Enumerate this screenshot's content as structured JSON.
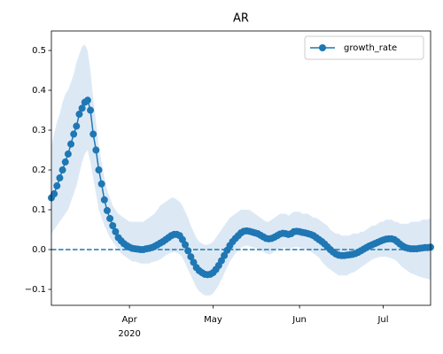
{
  "chart_data": {
    "type": "line",
    "title": "AR",
    "legend": "upper right",
    "grid": false,
    "hline": 0,
    "xlim": [
      0,
      136
    ],
    "xticks": [
      {
        "value": 28,
        "label": "Apr\n2020"
      },
      {
        "value": 58,
        "label": "May"
      },
      {
        "value": 89,
        "label": "Jun"
      },
      {
        "value": 119,
        "label": "Jul"
      }
    ],
    "ylim": [
      -0.14,
      0.549
    ],
    "yticks": [
      {
        "value": -0.1,
        "label": "−0.1"
      },
      {
        "value": 0,
        "label": "0.0"
      },
      0.1,
      0.2,
      0.3,
      0.4,
      0.5
    ],
    "series": [
      {
        "name": "growth_rate",
        "color": "#1f77b4",
        "band_color": "#dce9f5",
        "values": [
          0.13,
          0.14,
          0.16,
          0.18,
          0.2,
          0.22,
          0.24,
          0.265,
          0.29,
          0.31,
          0.34,
          0.355,
          0.37,
          0.375,
          0.35,
          0.29,
          0.25,
          0.2,
          0.165,
          0.125,
          0.098,
          0.078,
          0.06,
          0.045,
          0.03,
          0.022,
          0.015,
          0.01,
          0.006,
          0.003,
          0.002,
          0.001,
          0,
          0,
          0.002,
          0.003,
          0.005,
          0.008,
          0.012,
          0.016,
          0.02,
          0.025,
          0.03,
          0.035,
          0.038,
          0.038,
          0.035,
          0.025,
          0.012,
          -0.003,
          -0.018,
          -0.032,
          -0.045,
          -0.053,
          -0.058,
          -0.062,
          -0.063,
          -0.062,
          -0.058,
          -0.05,
          -0.04,
          -0.028,
          -0.015,
          -0.002,
          0.01,
          0.02,
          0.028,
          0.035,
          0.042,
          0.046,
          0.047,
          0.046,
          0.044,
          0.042,
          0.04,
          0.036,
          0.032,
          0.028,
          0.027,
          0.028,
          0.031,
          0.035,
          0.039,
          0.041,
          0.04,
          0.038,
          0.04,
          0.045,
          0.046,
          0.045,
          0.043,
          0.042,
          0.04,
          0.038,
          0.035,
          0.03,
          0.025,
          0.02,
          0.014,
          0.007,
          0,
          -0.006,
          -0.011,
          -0.014,
          -0.015,
          -0.015,
          -0.014,
          -0.013,
          -0.012,
          -0.01,
          -0.007,
          -0.003,
          0.001,
          0.005,
          0.009,
          0.012,
          0.015,
          0.018,
          0.021,
          0.024,
          0.026,
          0.027,
          0.027,
          0.025,
          0.02,
          0.014,
          0.009,
          0.005,
          0.003,
          0.002,
          0.002,
          0.002,
          0.003,
          0.004,
          0.005,
          0.005,
          0.006
        ],
        "upper": [
          0.26,
          0.29,
          0.32,
          0.34,
          0.37,
          0.39,
          0.4,
          0.42,
          0.44,
          0.47,
          0.49,
          0.51,
          0.515,
          0.5,
          0.45,
          0.38,
          0.32,
          0.26,
          0.22,
          0.18,
          0.15,
          0.13,
          0.11,
          0.1,
          0.09,
          0.085,
          0.08,
          0.075,
          0.07,
          0.07,
          0.07,
          0.07,
          0.07,
          0.07,
          0.075,
          0.08,
          0.085,
          0.09,
          0.1,
          0.11,
          0.115,
          0.12,
          0.125,
          0.13,
          0.13,
          0.125,
          0.12,
          0.11,
          0.095,
          0.08,
          0.06,
          0.045,
          0.03,
          0.02,
          0.015,
          0.012,
          0.012,
          0.015,
          0.02,
          0.03,
          0.04,
          0.05,
          0.06,
          0.07,
          0.08,
          0.085,
          0.09,
          0.095,
          0.1,
          0.1,
          0.1,
          0.1,
          0.095,
          0.09,
          0.085,
          0.08,
          0.075,
          0.07,
          0.07,
          0.075,
          0.08,
          0.085,
          0.09,
          0.09,
          0.09,
          0.085,
          0.09,
          0.095,
          0.095,
          0.095,
          0.09,
          0.09,
          0.09,
          0.085,
          0.08,
          0.08,
          0.075,
          0.07,
          0.065,
          0.06,
          0.05,
          0.045,
          0.04,
          0.04,
          0.035,
          0.035,
          0.035,
          0.035,
          0.04,
          0.04,
          0.04,
          0.045,
          0.045,
          0.05,
          0.055,
          0.06,
          0.06,
          0.065,
          0.07,
          0.07,
          0.075,
          0.075,
          0.075,
          0.07,
          0.07,
          0.065,
          0.065,
          0.065,
          0.065,
          0.07,
          0.07,
          0.07,
          0.07,
          0.075,
          0.075,
          0.075,
          0.08
        ],
        "lower": [
          0.04,
          0.05,
          0.06,
          0.07,
          0.08,
          0.09,
          0.1,
          0.12,
          0.14,
          0.16,
          0.19,
          0.22,
          0.24,
          0.25,
          0.22,
          0.18,
          0.14,
          0.1,
          0.08,
          0.06,
          0.045,
          0.03,
          0.02,
          0.01,
          0,
          -0.01,
          -0.015,
          -0.02,
          -0.025,
          -0.03,
          -0.03,
          -0.032,
          -0.035,
          -0.035,
          -0.035,
          -0.035,
          -0.032,
          -0.03,
          -0.028,
          -0.025,
          -0.02,
          -0.015,
          -0.01,
          -0.008,
          -0.006,
          -0.008,
          -0.012,
          -0.02,
          -0.035,
          -0.05,
          -0.065,
          -0.08,
          -0.095,
          -0.105,
          -0.11,
          -0.115,
          -0.115,
          -0.115,
          -0.11,
          -0.1,
          -0.09,
          -0.075,
          -0.06,
          -0.045,
          -0.03,
          -0.02,
          -0.01,
          -0.002,
          0.005,
          0.008,
          0.01,
          0.008,
          0.006,
          0.004,
          0.002,
          0,
          -0.005,
          -0.01,
          -0.012,
          -0.01,
          -0.005,
          0,
          0.003,
          0.005,
          0.004,
          0.002,
          0.004,
          0.006,
          0.006,
          0.005,
          0.003,
          0.002,
          0,
          -0.005,
          -0.01,
          -0.015,
          -0.02,
          -0.03,
          -0.038,
          -0.045,
          -0.05,
          -0.055,
          -0.06,
          -0.065,
          -0.065,
          -0.065,
          -0.065,
          -0.06,
          -0.058,
          -0.055,
          -0.05,
          -0.045,
          -0.04,
          -0.035,
          -0.03,
          -0.025,
          -0.022,
          -0.02,
          -0.018,
          -0.018,
          -0.018,
          -0.02,
          -0.022,
          -0.025,
          -0.03,
          -0.038,
          -0.045,
          -0.05,
          -0.055,
          -0.06,
          -0.062,
          -0.065,
          -0.068,
          -0.07,
          -0.072,
          -0.074,
          -0.076
        ]
      }
    ]
  }
}
